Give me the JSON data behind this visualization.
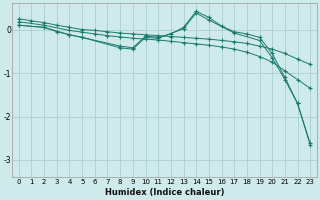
{
  "xlabel": "Humidex (Indice chaleur)",
  "background_color": "#ceeaea",
  "grid_color": "#aacfcf",
  "line_color": "#1a7a6e",
  "xlim": [
    -0.5,
    23.5
  ],
  "ylim": [
    -3.4,
    0.6
  ],
  "yticks": [
    0,
    -1,
    -2,
    -3
  ],
  "xticks": [
    0,
    1,
    2,
    3,
    4,
    5,
    6,
    7,
    8,
    9,
    10,
    11,
    12,
    13,
    14,
    15,
    16,
    17,
    18,
    19,
    20,
    21,
    22,
    23
  ],
  "series": [
    {
      "x": [
        0,
        1,
        2,
        3,
        4,
        5,
        6,
        7,
        8,
        9,
        10,
        11,
        12,
        13,
        14,
        15,
        16,
        17,
        18,
        19,
        20,
        21,
        22,
        23
      ],
      "y": [
        0.25,
        0.2,
        0.16,
        0.1,
        0.05,
        0.0,
        -0.02,
        -0.05,
        -0.08,
        -0.1,
        -0.12,
        -0.14,
        -0.16,
        -0.18,
        -0.2,
        -0.22,
        -0.25,
        -0.28,
        -0.32,
        -0.38,
        -0.45,
        -0.55,
        -0.68,
        -0.8
      ]
    },
    {
      "x": [
        0,
        2,
        4,
        5,
        6,
        7,
        8,
        9,
        10,
        11,
        12,
        13,
        14,
        15,
        16,
        17,
        18,
        19,
        20,
        21,
        22,
        23
      ],
      "y": [
        0.18,
        0.1,
        -0.02,
        -0.06,
        -0.1,
        -0.14,
        -0.17,
        -0.2,
        -0.22,
        -0.24,
        -0.27,
        -0.3,
        -0.33,
        -0.36,
        -0.4,
        -0.45,
        -0.52,
        -0.62,
        -0.75,
        -0.95,
        -1.15,
        -1.35
      ]
    },
    {
      "x": [
        0,
        2,
        3,
        4,
        5,
        8,
        9,
        10,
        11,
        12,
        13,
        14,
        15,
        16,
        17,
        18,
        19,
        20,
        21,
        22,
        23
      ],
      "y": [
        0.1,
        0.05,
        -0.05,
        -0.12,
        -0.18,
        -0.38,
        -0.42,
        -0.15,
        -0.18,
        -0.1,
        0.05,
        0.42,
        0.28,
        0.08,
        -0.05,
        -0.1,
        -0.18,
        -0.55,
        -1.1,
        -1.7,
        -2.65
      ]
    },
    {
      "x": [
        0,
        2,
        4,
        5,
        8,
        9,
        10,
        11,
        13,
        14,
        15,
        17,
        19,
        20,
        21,
        22,
        23
      ],
      "y": [
        0.1,
        0.05,
        -0.12,
        -0.18,
        -0.42,
        -0.45,
        -0.18,
        -0.2,
        0.02,
        0.38,
        0.22,
        -0.08,
        -0.25,
        -0.65,
        -1.15,
        -1.7,
        -2.62
      ]
    }
  ]
}
